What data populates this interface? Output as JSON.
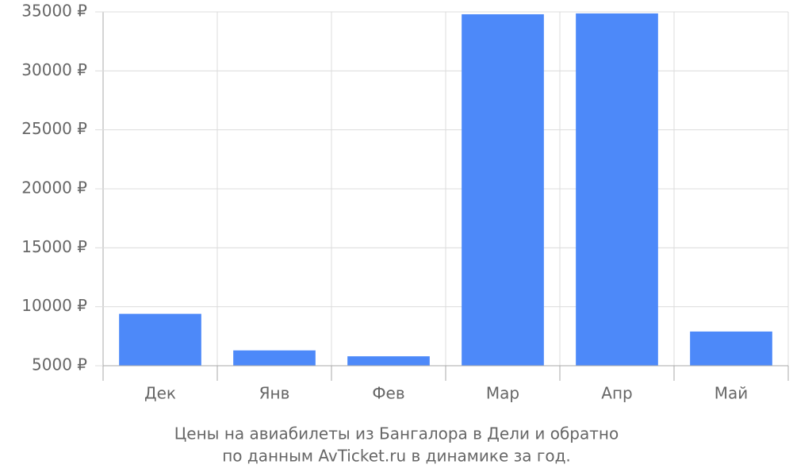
{
  "chart_data": {
    "type": "bar",
    "caption": [
      "Цены на авиабилеты из Бангалора в Дели и обратно",
      "по данным AvTicket.ru в динамике за год."
    ],
    "categories": [
      "Дек",
      "Янв",
      "Фев",
      "Мар",
      "Апр",
      "Май"
    ],
    "values": [
      9400,
      6300,
      5800,
      34800,
      34870,
      7900
    ],
    "color": "#4d89f9",
    "ylim": [
      5000,
      35000
    ],
    "yticks": [
      {
        "value": 5000,
        "label": "5000 ₽"
      },
      {
        "value": 10000,
        "label": "10000 ₽"
      },
      {
        "value": 15000,
        "label": "15000 ₽"
      },
      {
        "value": 20000,
        "label": "20000 ₽"
      },
      {
        "value": 25000,
        "label": "25000 ₽"
      },
      {
        "value": 30000,
        "label": "30000 ₽"
      },
      {
        "value": 35000,
        "label": "35000 ₽"
      }
    ],
    "grid": true
  }
}
